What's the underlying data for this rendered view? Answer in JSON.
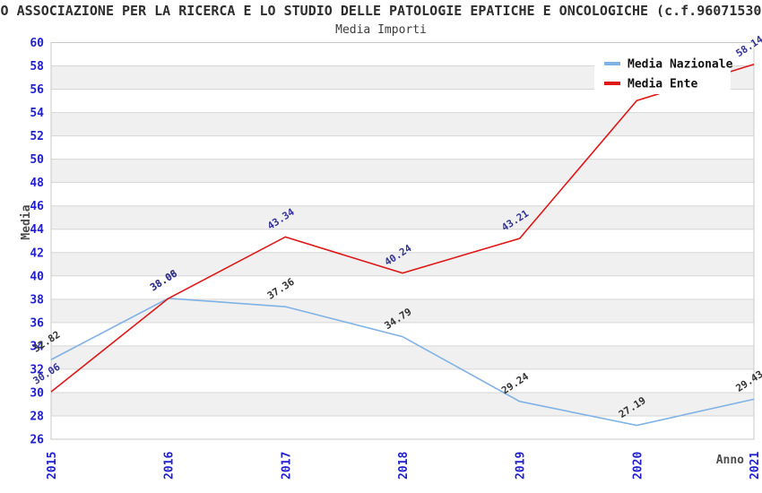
{
  "header": {
    "title": "O ASSOCIAZIONE PER LA RICERCA E LO STUDIO DELLE PATOLOGIE EPATICHE E ONCOLOGICHE (c.f.96071530",
    "subtitle": "Media Importi"
  },
  "chart_data": {
    "type": "line",
    "title": "Media Importi",
    "xlabel": "Anno",
    "ylabel": "Media",
    "x": [
      "2015",
      "2016",
      "2017",
      "2018",
      "2019",
      "2020",
      "2021"
    ],
    "ylim": [
      26,
      60
    ],
    "ytick_step": 2,
    "grid": true,
    "series": [
      {
        "name": "Media Nazionale",
        "color": "#7fb2e5",
        "label_color": "#333333",
        "values": [
          32.82,
          38.08,
          37.36,
          34.79,
          29.24,
          27.19,
          29.43
        ]
      },
      {
        "name": "Media Ente",
        "color": "#e01717",
        "label_color": "#333399",
        "values": [
          30.06,
          38.06,
          43.34,
          40.24,
          43.21,
          55.03,
          58.14
        ]
      }
    ],
    "legend": {
      "position": "top-right",
      "items": [
        "Media Nazionale",
        "Media Ente"
      ]
    },
    "colors": {
      "tick_label": "#2020cf",
      "axis_title": "#4d4d4d",
      "band": "#f0f0f0",
      "grid": "#d6d6d6",
      "border": "#c8c8c8",
      "legend_bg": "#ffffff",
      "legend_text": "#111111"
    }
  }
}
